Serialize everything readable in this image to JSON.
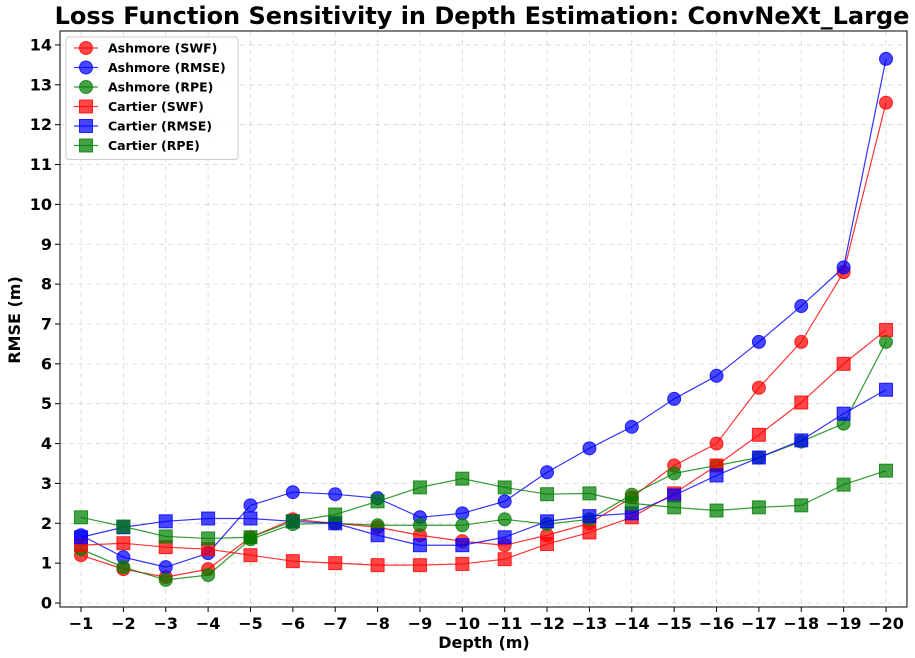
{
  "chart_data": {
    "type": "line",
    "title": "Loss Function Sensitivity in Depth Estimation: ConvNeXt_Large",
    "xlabel": "Depth (m)",
    "ylabel": "RMSE (m)",
    "x": [
      -1,
      -2,
      -3,
      -4,
      -5,
      -6,
      -7,
      -8,
      -9,
      -10,
      -11,
      -12,
      -13,
      -14,
      -15,
      -16,
      -17,
      -18,
      -19,
      -20
    ],
    "x_tick_labels": [
      "−1",
      "−2",
      "−3",
      "−4",
      "−5",
      "−6",
      "−7",
      "−8",
      "−9",
      "−10",
      "−11",
      "−12",
      "−13",
      "−14",
      "−15",
      "−16",
      "−17",
      "−18",
      "−19",
      "−20"
    ],
    "ylim": [
      -0.1,
      14.35
    ],
    "yticks": [
      0,
      1,
      2,
      3,
      4,
      5,
      6,
      7,
      8,
      9,
      10,
      11,
      12,
      13,
      14
    ],
    "y_tick_labels": [
      "0",
      "1",
      "2",
      "3",
      "4",
      "5",
      "6",
      "7",
      "8",
      "9",
      "10",
      "11",
      "12",
      "13",
      "14"
    ],
    "grid": true,
    "legend_position": "top-left",
    "series": [
      {
        "name": "Ashmore (SWF)",
        "color": "#ff0000",
        "marker": "circle",
        "values": [
          1.2,
          0.85,
          0.65,
          0.85,
          1.65,
          2.1,
          2.0,
          1.9,
          1.7,
          1.55,
          1.45,
          1.7,
          2.0,
          2.65,
          3.45,
          4.0,
          5.4,
          6.55,
          8.3,
          12.55
        ]
      },
      {
        "name": "Ashmore (RMSE)",
        "color": "#0000ff",
        "marker": "circle",
        "values": [
          1.7,
          1.15,
          0.9,
          1.25,
          2.45,
          2.78,
          2.73,
          2.63,
          2.15,
          2.25,
          2.55,
          3.28,
          3.88,
          4.42,
          5.12,
          5.7,
          6.55,
          7.45,
          8.42,
          13.65
        ]
      },
      {
        "name": "Ashmore (RPE)",
        "color": "#008000",
        "marker": "circle",
        "values": [
          1.35,
          0.9,
          0.58,
          0.7,
          1.6,
          1.98,
          2.0,
          1.95,
          1.95,
          1.95,
          2.1,
          1.98,
          2.1,
          2.72,
          3.25,
          3.45,
          3.65,
          4.05,
          4.5,
          6.55
        ]
      },
      {
        "name": "Cartier (SWF)",
        "color": "#ff0000",
        "marker": "square",
        "values": [
          1.45,
          1.5,
          1.4,
          1.35,
          1.2,
          1.05,
          1.0,
          0.95,
          0.95,
          0.98,
          1.1,
          1.48,
          1.77,
          2.15,
          2.75,
          3.45,
          4.22,
          5.03,
          6.0,
          6.85
        ]
      },
      {
        "name": "Cartier (RMSE)",
        "color": "#0000ff",
        "marker": "square",
        "values": [
          1.65,
          1.9,
          2.05,
          2.12,
          2.12,
          2.05,
          2.0,
          1.7,
          1.45,
          1.45,
          1.65,
          2.05,
          2.18,
          2.25,
          2.7,
          3.2,
          3.65,
          4.08,
          4.75,
          5.35
        ]
      },
      {
        "name": "Cartier (RPE)",
        "color": "#008000",
        "marker": "square",
        "values": [
          2.15,
          1.92,
          1.67,
          1.62,
          1.65,
          2.05,
          2.22,
          2.55,
          2.9,
          3.12,
          2.9,
          2.73,
          2.75,
          2.5,
          2.4,
          2.32,
          2.4,
          2.45,
          2.97,
          3.32
        ]
      }
    ]
  }
}
